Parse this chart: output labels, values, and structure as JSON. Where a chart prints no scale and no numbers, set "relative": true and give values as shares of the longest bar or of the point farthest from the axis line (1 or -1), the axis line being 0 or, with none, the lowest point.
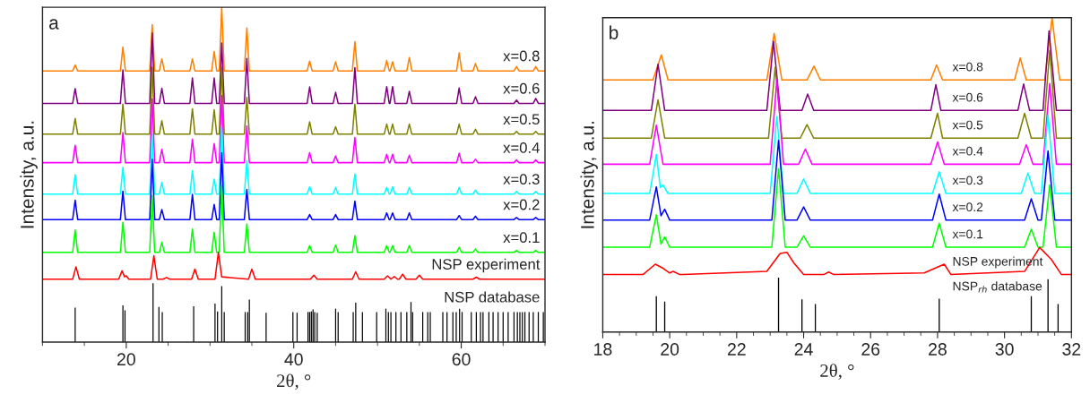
{
  "chart_data": [
    {
      "type": "line",
      "relative": true,
      "xlabel": "2θ, °",
      "ylabel": "Intensity, a.u.",
      "annotations": [
        "a"
      ],
      "xlim": [
        10,
        70
      ],
      "xticks": [
        {
          "value": 10,
          "label": null
        },
        {
          "value": 15,
          "label": null
        },
        20,
        {
          "value": 25,
          "label": null
        },
        {
          "value": 30,
          "label": null
        },
        {
          "value": 35,
          "label": null
        },
        40,
        {
          "value": 45,
          "label": null
        },
        {
          "value": 50,
          "label": null
        },
        {
          "value": 55,
          "label": null
        },
        60,
        {
          "value": 65,
          "label": null
        },
        {
          "value": 70,
          "label": null
        }
      ],
      "x": [
        10,
        13.6,
        13.9,
        14.2,
        19.3,
        19.6,
        19.9,
        22.8,
        23.1,
        23.4,
        23.95,
        24.25,
        24.55,
        27.6,
        27.9,
        28.2,
        30.2,
        30.5,
        30.8,
        31.1,
        31.4,
        31.7,
        34.1,
        34.4,
        34.7,
        41.6,
        41.9,
        42.2,
        44.7,
        45.0,
        45.3,
        47.0,
        47.3,
        47.6,
        50.8,
        51.1,
        51.4,
        51.5,
        51.8,
        52.1,
        53.5,
        53.8,
        54.1,
        59.45,
        59.75,
        60.05,
        61.4,
        61.7,
        62.0,
        66.3,
        66.6,
        66.9,
        68.6,
        68.9,
        69.2,
        70
      ],
      "series": [
        {
          "name": "x=0.8",
          "color": "#ff7f00",
          "values": [
            0.81,
            0.81,
            0.828,
            0.81,
            0.81,
            0.881,
            0.81,
            0.81,
            0.948,
            0.81,
            0.81,
            0.846,
            0.81,
            0.81,
            0.846,
            0.81,
            0.81,
            0.868,
            0.81,
            0.81,
            1.0,
            0.81,
            0.81,
            0.938,
            0.81,
            0.81,
            0.839,
            0.81,
            0.81,
            0.837,
            0.81,
            0.81,
            0.897,
            0.81,
            0.81,
            0.841,
            0.81,
            0.81,
            0.837,
            0.81,
            0.81,
            0.85,
            0.81,
            0.81,
            0.864,
            0.81,
            0.81,
            0.832,
            0.81,
            0.81,
            0.823,
            0.81,
            0.81,
            0.823,
            0.81,
            0.81
          ]
        },
        {
          "name": "x=0.6",
          "color": "#800080",
          "values": [
            0.713,
            0.713,
            0.757,
            0.713,
            0.713,
            0.813,
            0.713,
            0.713,
            0.923,
            0.713,
            0.713,
            0.758,
            0.713,
            0.713,
            0.789,
            0.713,
            0.713,
            0.789,
            0.713,
            0.713,
            0.893,
            0.713,
            0.713,
            0.847,
            0.713,
            0.713,
            0.762,
            0.713,
            0.713,
            0.746,
            0.713,
            0.713,
            0.82,
            0.713,
            0.713,
            0.763,
            0.713,
            0.713,
            0.763,
            0.713,
            0.713,
            0.749,
            0.713,
            0.713,
            0.759,
            0.713,
            0.713,
            0.733,
            0.713,
            0.713,
            0.723,
            0.713,
            0.713,
            0.728,
            0.713,
            0.713
          ]
        },
        {
          "name": "x=0.5",
          "color": "#808000",
          "values": [
            0.621,
            0.621,
            0.668,
            0.621,
            0.621,
            0.711,
            0.621,
            0.621,
            0.821,
            0.621,
            0.621,
            0.661,
            0.621,
            0.621,
            0.697,
            0.621,
            0.621,
            0.694,
            0.621,
            0.621,
            0.821,
            0.621,
            0.621,
            0.731,
            0.621,
            0.621,
            0.658,
            0.621,
            0.621,
            0.643,
            0.621,
            0.621,
            0.711,
            0.621,
            0.621,
            0.651,
            0.621,
            0.621,
            0.651,
            0.621,
            0.621,
            0.651,
            0.621,
            0.621,
            0.651,
            0.621,
            0.621,
            0.636,
            0.621,
            0.621,
            0.629,
            0.621,
            0.621,
            0.629,
            0.621,
            0.621
          ]
        },
        {
          "name": "x=0.4",
          "color": "#ff00ff",
          "values": [
            0.536,
            0.536,
            0.588,
            0.536,
            0.536,
            0.626,
            0.536,
            0.536,
            0.726,
            0.536,
            0.536,
            0.576,
            0.536,
            0.536,
            0.606,
            0.536,
            0.536,
            0.593,
            0.536,
            0.536,
            0.736,
            0.536,
            0.536,
            0.646,
            0.536,
            0.536,
            0.566,
            0.536,
            0.536,
            0.556,
            0.536,
            0.536,
            0.611,
            0.536,
            0.536,
            0.561,
            0.536,
            0.536,
            0.561,
            0.536,
            0.536,
            0.558,
            0.536,
            0.536,
            0.564,
            0.536,
            0.536,
            0.546,
            0.536,
            0.536,
            0.544,
            0.536,
            0.536,
            0.544,
            0.536,
            0.536
          ]
        },
        {
          "name": "x=0.3",
          "color": "#00ffff",
          "values": [
            0.442,
            0.442,
            0.5,
            0.442,
            0.442,
            0.522,
            0.442,
            0.442,
            0.622,
            0.442,
            0.442,
            0.477,
            0.442,
            0.442,
            0.512,
            0.442,
            0.442,
            0.487,
            0.442,
            0.442,
            0.642,
            0.442,
            0.442,
            0.542,
            0.442,
            0.442,
            0.464,
            0.442,
            0.442,
            0.462,
            0.442,
            0.442,
            0.502,
            0.442,
            0.442,
            0.462,
            0.442,
            0.442,
            0.464,
            0.442,
            0.442,
            0.462,
            0.442,
            0.442,
            0.462,
            0.442,
            0.442,
            0.454,
            0.442,
            0.442,
            0.45,
            0.442,
            0.442,
            0.45,
            0.442,
            0.442
          ]
        },
        {
          "name": "x=0.2",
          "color": "#0000ff",
          "values": [
            0.366,
            0.366,
            0.424,
            0.366,
            0.366,
            0.451,
            0.366,
            0.366,
            0.546,
            0.366,
            0.366,
            0.396,
            0.366,
            0.366,
            0.441,
            0.366,
            0.366,
            0.411,
            0.366,
            0.366,
            0.566,
            0.366,
            0.366,
            0.456,
            0.366,
            0.366,
            0.381,
            0.366,
            0.366,
            0.381,
            0.366,
            0.366,
            0.421,
            0.366,
            0.366,
            0.386,
            0.366,
            0.366,
            0.386,
            0.366,
            0.366,
            0.386,
            0.366,
            0.366,
            0.378,
            0.366,
            0.366,
            0.376,
            0.366,
            0.366,
            0.372,
            0.366,
            0.366,
            0.372,
            0.366,
            0.366
          ]
        },
        {
          "name": "x=0.1",
          "color": "#00ff00",
          "values": [
            0.268,
            0.268,
            0.335,
            0.268,
            0.268,
            0.358,
            0.268,
            0.268,
            0.438,
            0.268,
            0.268,
            0.298,
            0.268,
            0.268,
            0.338,
            0.268,
            0.268,
            0.328,
            0.268,
            0.268,
            0.468,
            0.268,
            0.268,
            0.353,
            0.268,
            0.268,
            0.288,
            0.268,
            0.268,
            0.29,
            0.268,
            0.268,
            0.318,
            0.268,
            0.268,
            0.288,
            0.268,
            0.268,
            0.288,
            0.268,
            0.268,
            0.288,
            0.268,
            0.268,
            0.283,
            0.268,
            0.268,
            0.278,
            0.268,
            0.268,
            0.274,
            0.268,
            0.268,
            0.274,
            0.268,
            0.268
          ]
        },
        {
          "name": "NSP experiment",
          "color": "#ff0000",
          "x": [
            10,
            13.6,
            14.0,
            14.4,
            19.1,
            19.5,
            19.8,
            20.0,
            20.3,
            22.9,
            23.3,
            23.7,
            24.4,
            24.8,
            25.2,
            27.8,
            28.2,
            28.6,
            30.6,
            31.0,
            31.4,
            34.6,
            35.0,
            35.4,
            42.0,
            42.4,
            42.8,
            47.0,
            47.4,
            47.8,
            50.8,
            51.2,
            51.6,
            52.0,
            52.4,
            52.6,
            53.0,
            53.4,
            54.6,
            55.0,
            55.4,
            61.4,
            61.8,
            62.2,
            70
          ],
          "values": [
            0.188,
            0.188,
            0.225,
            0.188,
            0.188,
            0.213,
            0.195,
            0.198,
            0.188,
            0.188,
            0.258,
            0.188,
            0.188,
            0.193,
            0.188,
            0.188,
            0.218,
            0.188,
            0.188,
            0.268,
            0.195,
            0.188,
            0.218,
            0.188,
            0.188,
            0.2,
            0.188,
            0.188,
            0.21,
            0.188,
            0.188,
            0.198,
            0.188,
            0.196,
            0.188,
            0.188,
            0.203,
            0.188,
            0.188,
            0.2,
            0.188,
            0.188,
            0.194,
            0.188,
            0.188
          ]
        },
        {
          "name": "NSP database",
          "type": "bar",
          "color": "#000000",
          "x": [
            13.9,
            19.6,
            19.85,
            23.2,
            23.9,
            24.3,
            28.05,
            30.6,
            30.9,
            31.4,
            31.7,
            34.2,
            34.5,
            34.7,
            36.7,
            39.9,
            40.4,
            41.7,
            41.9,
            42.1,
            42.3,
            42.5,
            42.8,
            45.0,
            45.3,
            47.1,
            47.4,
            48.2,
            49.9,
            51.0,
            51.3,
            51.6,
            52.2,
            52.8,
            53.5,
            54.0,
            54.2,
            55.4,
            56.0,
            56.3,
            57.8,
            58.3,
            59.0,
            59.4,
            59.8,
            60.1,
            61.2,
            61.8,
            62.3,
            62.6,
            63.3,
            63.8,
            64.4,
            65.0,
            65.6,
            66.3,
            66.7,
            67.0,
            67.3,
            67.6,
            68.1,
            68.6,
            69.2,
            69.8
          ],
          "values": [
            0.103,
            0.11,
            0.095,
            0.176,
            0.105,
            0.09,
            0.107,
            0.115,
            0.092,
            0.167,
            0.09,
            0.09,
            0.09,
            0.127,
            0.088,
            0.09,
            0.088,
            0.09,
            0.09,
            0.092,
            0.098,
            0.09,
            0.088,
            0.1,
            0.09,
            0.09,
            0.118,
            0.09,
            0.09,
            0.1,
            0.09,
            0.09,
            0.09,
            0.09,
            0.09,
            0.12,
            0.09,
            0.09,
            0.09,
            0.09,
            0.09,
            0.09,
            0.09,
            0.09,
            0.1,
            0.09,
            0.09,
            0.09,
            0.09,
            0.09,
            0.09,
            0.09,
            0.09,
            0.09,
            0.09,
            0.09,
            0.09,
            0.09,
            0.09,
            0.09,
            0.09,
            0.09,
            0.09,
            0.09
          ]
        }
      ]
    },
    {
      "type": "line",
      "relative": true,
      "xlabel": "2θ, °",
      "ylabel": "Intensity, a.u.",
      "annotations": [
        "b"
      ],
      "xlim": [
        18,
        32
      ],
      "xticks": [
        18,
        {
          "value": 18.5,
          "label": null
        },
        {
          "value": 19,
          "label": null
        },
        {
          "value": 19.5,
          "label": null
        },
        20,
        {
          "value": 20.5,
          "label": null
        },
        {
          "value": 21,
          "label": null
        },
        {
          "value": 21.5,
          "label": null
        },
        22,
        {
          "value": 22.5,
          "label": null
        },
        {
          "value": 23,
          "label": null
        },
        {
          "value": 23.5,
          "label": null
        },
        24,
        {
          "value": 24.5,
          "label": null
        },
        {
          "value": 25,
          "label": null
        },
        {
          "value": 25.5,
          "label": null
        },
        26,
        {
          "value": 26.5,
          "label": null
        },
        {
          "value": 27,
          "label": null
        },
        {
          "value": 27.5,
          "label": null
        },
        28,
        {
          "value": 28.5,
          "label": null
        },
        {
          "value": 29,
          "label": null
        },
        {
          "value": 29.5,
          "label": null
        },
        30,
        {
          "value": 30.5,
          "label": null
        },
        {
          "value": 31,
          "label": null
        },
        {
          "value": 31.5,
          "label": null
        },
        32
      ],
      "series": [
        {
          "name": "x=0.8",
          "color": "#ff7f00",
          "x": [
            18,
            19.5,
            19.75,
            19.95,
            22.9,
            23.12,
            23.35,
            24.1,
            24.31,
            24.5,
            27.8,
            27.97,
            28.15,
            30.3,
            30.47,
            30.65,
            31.2,
            31.42,
            31.65,
            32
          ],
          "values": [
            0.802,
            0.802,
            0.882,
            0.802,
            0.802,
            0.95,
            0.802,
            0.802,
            0.846,
            0.802,
            0.802,
            0.85,
            0.802,
            0.802,
            0.872,
            0.802,
            0.802,
            1.0,
            0.802,
            0.802
          ]
        },
        {
          "name": "x=0.6",
          "color": "#800080",
          "x": [
            18,
            19.45,
            19.65,
            19.85,
            22.9,
            23.1,
            23.3,
            23.95,
            24.12,
            24.3,
            27.8,
            27.95,
            28.1,
            30.4,
            30.57,
            30.75,
            31.15,
            31.33,
            31.55,
            32
          ],
          "values": [
            0.705,
            0.705,
            0.852,
            0.705,
            0.705,
            0.925,
            0.705,
            0.705,
            0.757,
            0.705,
            0.705,
            0.787,
            0.705,
            0.705,
            0.789,
            0.705,
            0.705,
            0.958,
            0.705,
            0.705
          ]
        },
        {
          "name": "x=0.5",
          "color": "#808000",
          "x": [
            18,
            19.45,
            19.65,
            19.85,
            22.95,
            23.15,
            23.35,
            23.9,
            24.1,
            24.3,
            27.8,
            28.0,
            28.15,
            30.4,
            30.6,
            30.8,
            31.15,
            31.35,
            31.55,
            32
          ],
          "values": [
            0.617,
            0.617,
            0.739,
            0.617,
            0.617,
            0.843,
            0.617,
            0.617,
            0.66,
            0.617,
            0.617,
            0.696,
            0.617,
            0.617,
            0.696,
            0.617,
            0.617,
            0.897,
            0.617,
            0.617
          ]
        },
        {
          "name": "x=0.4",
          "color": "#ff00ff",
          "x": [
            18,
            19.4,
            19.6,
            19.8,
            23.0,
            23.2,
            23.4,
            23.85,
            24.05,
            24.25,
            27.8,
            28.0,
            28.2,
            30.45,
            30.65,
            30.85,
            31.15,
            31.35,
            31.55,
            32
          ],
          "values": [
            0.534,
            0.534,
            0.658,
            0.534,
            0.534,
            0.804,
            0.534,
            0.534,
            0.582,
            0.534,
            0.534,
            0.605,
            0.534,
            0.534,
            0.596,
            0.534,
            0.534,
            0.791,
            0.534,
            0.534
          ]
        },
        {
          "name": "x=0.3",
          "color": "#00ffff",
          "x": [
            18,
            19.4,
            19.6,
            19.72,
            19.8,
            19.95,
            23.0,
            23.2,
            23.4,
            23.8,
            24.0,
            24.2,
            27.85,
            28.05,
            28.25,
            30.5,
            30.7,
            30.9,
            31.1,
            31.3,
            31.5,
            32
          ],
          "values": [
            0.441,
            0.441,
            0.565,
            0.46,
            0.468,
            0.441,
            0.441,
            0.686,
            0.441,
            0.441,
            0.487,
            0.441,
            0.441,
            0.51,
            0.441,
            0.441,
            0.506,
            0.441,
            0.441,
            0.691,
            0.441,
            0.441
          ]
        },
        {
          "name": "x=0.2",
          "color": "#0000ff",
          "x": [
            18,
            19.4,
            19.6,
            19.74,
            19.85,
            20.0,
            23.05,
            23.25,
            23.45,
            23.8,
            24.0,
            24.2,
            27.85,
            28.05,
            28.25,
            30.6,
            30.8,
            31.0,
            31.1,
            31.3,
            31.5,
            32
          ],
          "values": [
            0.356,
            0.356,
            0.462,
            0.37,
            0.391,
            0.356,
            0.356,
            0.61,
            0.356,
            0.356,
            0.398,
            0.356,
            0.356,
            0.439,
            0.356,
            0.356,
            0.424,
            0.356,
            0.356,
            0.576,
            0.356,
            0.356
          ]
        },
        {
          "name": "x=0.1",
          "color": "#00ff00",
          "x": [
            18,
            19.4,
            19.6,
            19.74,
            19.85,
            20.0,
            23.05,
            23.25,
            23.45,
            23.8,
            24.0,
            24.2,
            27.85,
            28.05,
            28.25,
            30.6,
            30.8,
            31.0,
            31.15,
            31.35,
            31.55,
            32
          ],
          "values": [
            0.27,
            0.27,
            0.373,
            0.28,
            0.303,
            0.27,
            0.27,
            0.52,
            0.27,
            0.27,
            0.306,
            0.27,
            0.27,
            0.346,
            0.27,
            0.27,
            0.327,
            0.27,
            0.27,
            0.468,
            0.27,
            0.27
          ]
        },
        {
          "name": "NSP experiment",
          "color": "#ff0000",
          "x": [
            18,
            19.2,
            19.57,
            19.8,
            20.0,
            20.1,
            20.3,
            22.9,
            23.3,
            23.5,
            23.7,
            24.0,
            24.6,
            24.75,
            24.9,
            27.6,
            28.2,
            28.4,
            30.6,
            31.05,
            31.4,
            31.7,
            32
          ],
          "values": [
            0.183,
            0.183,
            0.216,
            0.203,
            0.188,
            0.193,
            0.183,
            0.193,
            0.25,
            0.254,
            0.221,
            0.183,
            0.183,
            0.191,
            0.183,
            0.188,
            0.216,
            0.183,
            0.193,
            0.269,
            0.231,
            0.183,
            0.183
          ]
        },
        {
          "name": "NSP$_{rh}$ database",
          "type": "bar",
          "color": "#000000",
          "x": [
            19.6,
            19.85,
            23.25,
            23.95,
            24.35,
            28.05,
            30.8,
            31.3,
            31.6
          ],
          "values": [
            0.114,
            0.097,
            0.173,
            0.104,
            0.089,
            0.106,
            0.114,
            0.168,
            0.089
          ]
        }
      ]
    }
  ]
}
